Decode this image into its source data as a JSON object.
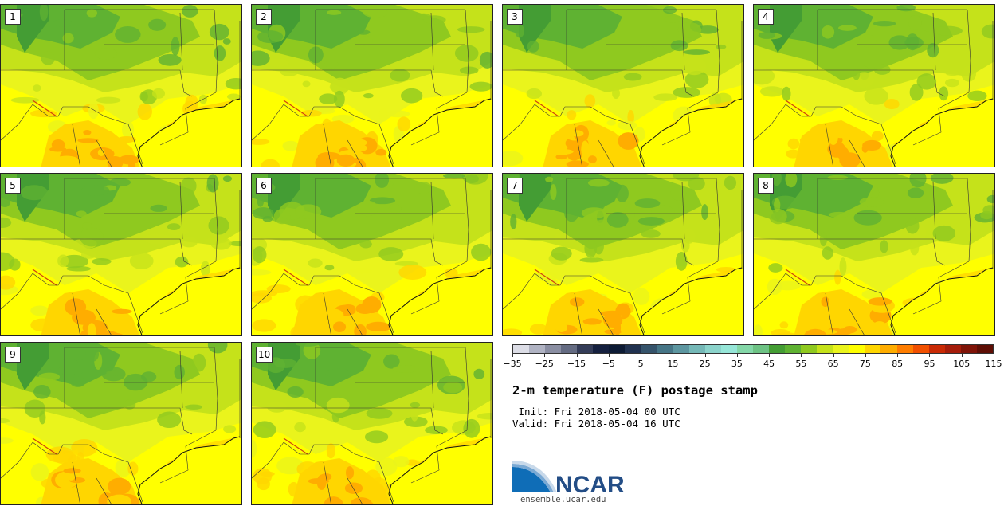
{
  "panels": [
    {
      "label": "1",
      "seed": 11
    },
    {
      "label": "2",
      "seed": 23
    },
    {
      "label": "3",
      "seed": 37
    },
    {
      "label": "4",
      "seed": 41
    },
    {
      "label": "5",
      "seed": 53
    },
    {
      "label": "6",
      "seed": 67
    },
    {
      "label": "7",
      "seed": 71
    },
    {
      "label": "8",
      "seed": 83
    },
    {
      "label": "9",
      "seed": 97
    },
    {
      "label": "10",
      "seed": 109
    }
  ],
  "colorbar": {
    "colors": [
      "#dcdde6",
      "#b0b3c3",
      "#8a8ea2",
      "#646b82",
      "#343c58",
      "#15203f",
      "#0d1b35",
      "#213250",
      "#35536b",
      "#467586",
      "#5d96a0",
      "#75b8b7",
      "#8bd3cb",
      "#96e6d8",
      "#84d7a8",
      "#6dc284",
      "#449d34",
      "#5fb232",
      "#8fc91f",
      "#c5e21a",
      "#eaf41c",
      "#ffff00",
      "#ffd600",
      "#ffad00",
      "#ff7d00",
      "#f15000",
      "#c92a05",
      "#a51d0a",
      "#7f1408",
      "#5e0e05"
    ],
    "labels": [
      "−35",
      "−25",
      "−15",
      "−5",
      "5",
      "15",
      "25",
      "35",
      "45",
      "55",
      "65",
      "75",
      "85",
      "95",
      "105",
      "115"
    ]
  },
  "title": "2-m temperature (F) postage stamp",
  "init_line": " Init: Fri 2018-05-04 00 UTC",
  "valid_line": "Valid: Fri 2018-05-04 16 UTC",
  "logo_text": "NCAR",
  "url": "ensemble.ucar.edu"
}
